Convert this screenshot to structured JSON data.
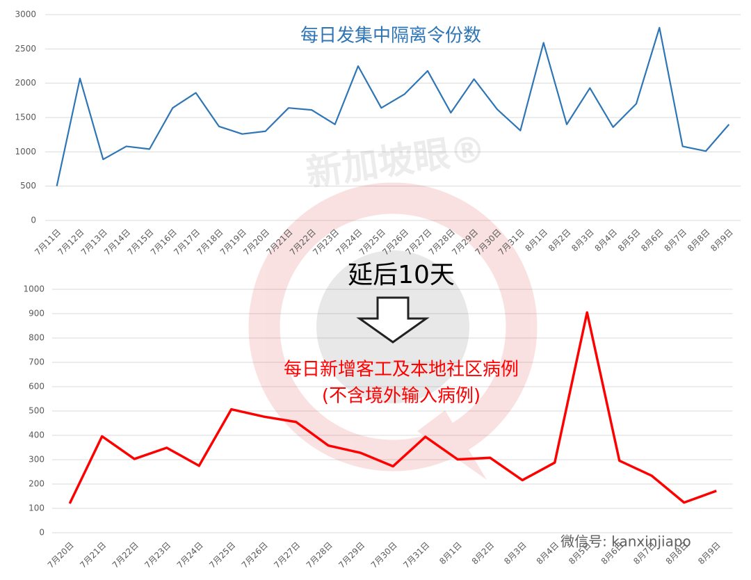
{
  "chart_data": [
    {
      "type": "line",
      "title": "每日发集中隔离令份数",
      "categories": [
        "7月11日",
        "7月12日",
        "7月13日",
        "7月14日",
        "7月15日",
        "7月16日",
        "7月17日",
        "7月18日",
        "7月19日",
        "7月20日",
        "7月21日",
        "7月22日",
        "7月23日",
        "7月24日",
        "7月25日",
        "7月26日",
        "7月27日",
        "7月28日",
        "7月29日",
        "7月30日",
        "7月31日",
        "8月1日",
        "8月2日",
        "8月3日",
        "8月4日",
        "8月5日",
        "8月6日",
        "8月7日",
        "8月8日",
        "8月9日"
      ],
      "series": [
        {
          "color": "#2e75b6",
          "values": [
            500,
            2070,
            890,
            1080,
            1040,
            1640,
            1860,
            1370,
            1260,
            1300,
            1640,
            1610,
            1400,
            2250,
            1640,
            1840,
            2180,
            1570,
            2060,
            1620,
            1310,
            2590,
            1400,
            1930,
            1360,
            1700,
            2810,
            1080,
            1010,
            1400
          ]
        }
      ],
      "ylim": [
        0,
        3000
      ],
      "yticks": [
        0,
        500,
        1000,
        1500,
        2000,
        2500,
        3000
      ],
      "grid": true
    },
    {
      "type": "line",
      "title": "每日新增客工及本地社区病例",
      "subtitle": "(不含境外输入病例)",
      "categories": [
        "7月20日",
        "7月21日",
        "7月22日",
        "7月23日",
        "7月24日",
        "7月25日",
        "7月26日",
        "7月27日",
        "7月28日",
        "7月29日",
        "7月30日",
        "7月31日",
        "8月1日",
        "8月2日",
        "8月3日",
        "8月4日",
        "8月5日",
        "8月6日",
        "8月7日",
        "8月8日",
        "8月9日"
      ],
      "series": [
        {
          "color": "#ff0000",
          "values": [
            120,
            396,
            303,
            349,
            275,
            507,
            477,
            455,
            358,
            328,
            273,
            394,
            301,
            308,
            216,
            288,
            905,
            296,
            234,
            124,
            172
          ]
        }
      ],
      "ylim": [
        0,
        1000
      ],
      "yticks": [
        0,
        100,
        200,
        300,
        400,
        500,
        600,
        700,
        800,
        900,
        1000
      ],
      "grid": true
    }
  ],
  "annotation": "延后10天",
  "watermark": "新加坡眼®",
  "footer": "微信号: kanxinjiapo"
}
